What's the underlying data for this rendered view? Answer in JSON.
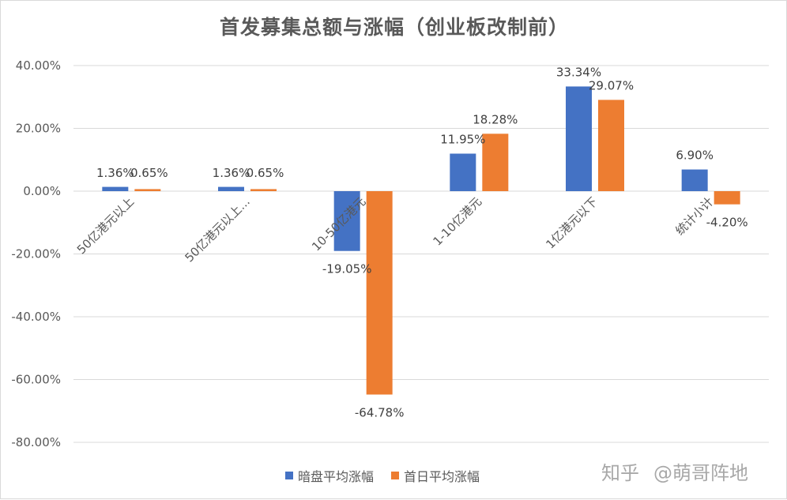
{
  "chart_data": {
    "type": "bar",
    "title": "首发募集总额与涨幅（创业板改制前）",
    "categories": [
      "50亿港元以上",
      "50亿港元以上...",
      "10-50亿港元",
      "1-10亿港元",
      "1亿港元以下",
      "统计小计"
    ],
    "series": [
      {
        "name": "暗盘平均涨幅",
        "color": "#4472c4",
        "values": [
          1.36,
          1.36,
          -19.05,
          11.95,
          33.34,
          6.9
        ],
        "labels": [
          "1.36%",
          "1.36%",
          "-19.05%",
          "11.95%",
          "33.34%",
          "6.90%"
        ]
      },
      {
        "name": "首日平均涨幅",
        "color": "#ed7d31",
        "values": [
          0.65,
          0.65,
          -64.78,
          18.28,
          29.07,
          -4.2
        ],
        "labels": [
          "0.65%",
          "0.65%",
          "-64.78%",
          "18.28%",
          "29.07%",
          "-4.20%"
        ]
      }
    ],
    "y_ticks": [
      "40.00%",
      "20.00%",
      "0.00%",
      "-20.00%",
      "-40.00%",
      "-60.00%",
      "-80.00%"
    ],
    "ylim": [
      -80,
      40
    ],
    "grid": true,
    "legend_position": "bottom"
  },
  "watermark": {
    "platform": "知乎",
    "handle": "@萌哥阵地"
  }
}
